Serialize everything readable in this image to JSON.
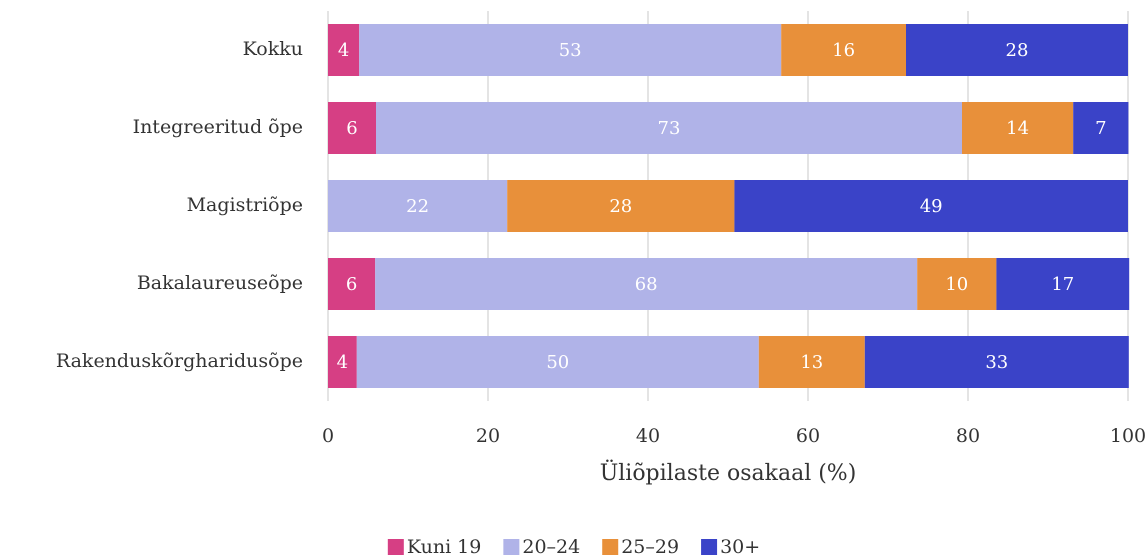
{
  "chart_data": {
    "type": "stacked-bar-horizontal",
    "categories": [
      "Kokku",
      "Integreeritud õpe",
      "Magistriõpe",
      "Bakalaureuseõpe",
      "Rakenduskõrgharidusõpe"
    ],
    "series": [
      {
        "name": "Kuni 19",
        "color": "#d63f84",
        "values": [
          3.9,
          6.0,
          0,
          5.9,
          3.6
        ],
        "value_labels": [
          "4",
          "6",
          null,
          "6",
          "4"
        ]
      },
      {
        "name": "20–24",
        "color": "#b0b3e8",
        "values": [
          52.75,
          73.25,
          22.4,
          67.75,
          50.25
        ],
        "value_labels": [
          "53",
          "73",
          "22",
          "68",
          "50"
        ]
      },
      {
        "name": "25–29",
        "color": "#e8903a",
        "values": [
          15.6,
          13.9,
          28.4,
          9.9,
          13.25
        ],
        "value_labels": [
          "16",
          "14",
          "28",
          "10",
          "13"
        ]
      },
      {
        "name": "30+",
        "color": "#3a43c8",
        "values": [
          27.75,
          6.9,
          49.2,
          16.6,
          33
        ],
        "value_labels": [
          "28",
          "7",
          "49",
          "17",
          "33"
        ]
      }
    ],
    "xlabel": "Üliõpilaste osakaal (%)",
    "xlim": [
      0,
      100
    ],
    "xticks": [
      0,
      20,
      40,
      60,
      80,
      100
    ],
    "grid": true,
    "legend": "bottom"
  }
}
